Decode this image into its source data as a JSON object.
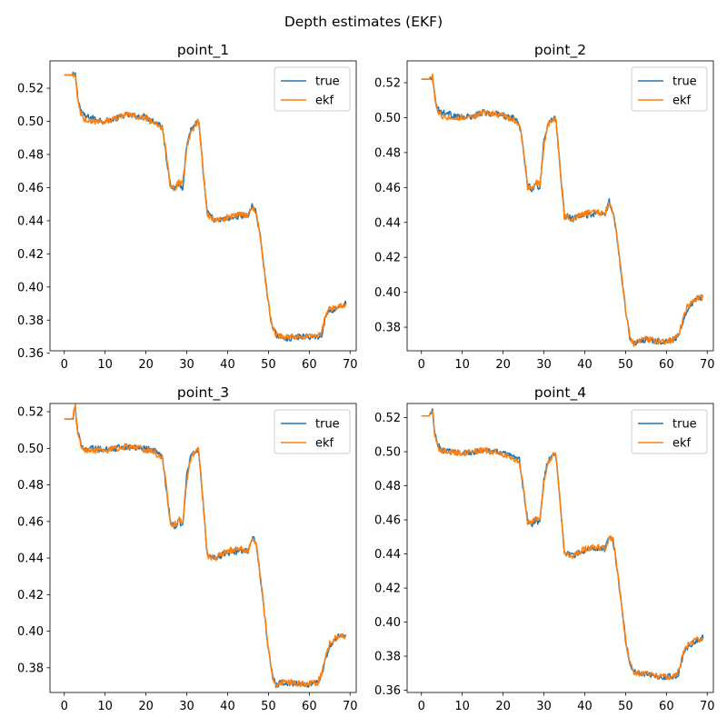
{
  "suptitle": "Depth estimates (EKF)",
  "colors": {
    "true": "#1f77b4",
    "ekf": "#ff7f0e"
  },
  "chart_data": [
    {
      "type": "line",
      "title": "point_1",
      "xlim": [
        -3.5,
        71.5
      ],
      "ylim": [
        0.3615,
        0.5365
      ],
      "xticks": [
        0,
        10,
        20,
        30,
        40,
        50,
        60,
        70
      ],
      "yticks": [
        0.36,
        0.38,
        0.4,
        0.42,
        0.44,
        0.46,
        0.48,
        0.5,
        0.52
      ],
      "ytick_labels": [
        "0.36",
        "0.38",
        "0.40",
        "0.42",
        "0.44",
        "0.46",
        "0.48",
        "0.50",
        "0.52"
      ],
      "legend": {
        "position": "top-right",
        "entries": [
          "true",
          "ekf"
        ]
      },
      "series": [
        {
          "name": "true",
          "color": "#1f77b4",
          "x": [
            0,
            2,
            2.7,
            3.3,
            4,
            5,
            7,
            10,
            13,
            15,
            18,
            20,
            21,
            22,
            23,
            24,
            25,
            26,
            27,
            28,
            29,
            30,
            31,
            32,
            32.7,
            33,
            34,
            35,
            37,
            40,
            43,
            45,
            46,
            47,
            48,
            49,
            50,
            51,
            52,
            53,
            55,
            58,
            60,
            62,
            63,
            64,
            65,
            66,
            67,
            68,
            69
          ],
          "y": [
            0.528,
            0.528,
            0.528,
            0.515,
            0.507,
            0.503,
            0.502,
            0.5,
            0.502,
            0.504,
            0.503,
            0.503,
            0.501,
            0.5,
            0.499,
            0.497,
            0.478,
            0.462,
            0.459,
            0.462,
            0.46,
            0.486,
            0.495,
            0.498,
            0.5,
            0.497,
            0.47,
            0.445,
            0.44,
            0.441,
            0.443,
            0.443,
            0.449,
            0.445,
            0.43,
            0.41,
            0.39,
            0.375,
            0.371,
            0.37,
            0.369,
            0.37,
            0.37,
            0.37,
            0.371,
            0.382,
            0.386,
            0.386,
            0.388,
            0.389,
            0.39
          ]
        },
        {
          "name": "ekf",
          "color": "#ff7f0e",
          "x": [
            0,
            2,
            2.7,
            3.3,
            4,
            5,
            7,
            10,
            13,
            15,
            18,
            20,
            21,
            22,
            23,
            24,
            25,
            26,
            27,
            28,
            29,
            30,
            31,
            32,
            32.7,
            33,
            34,
            35,
            37,
            40,
            43,
            45,
            46,
            47,
            48,
            49,
            50,
            51,
            52,
            53,
            55,
            58,
            60,
            62,
            63,
            64,
            65,
            66,
            67,
            68,
            69
          ],
          "y": [
            0.528,
            0.528,
            0.528,
            0.513,
            0.505,
            0.501,
            0.5,
            0.5,
            0.502,
            0.504,
            0.503,
            0.502,
            0.5,
            0.5,
            0.498,
            0.496,
            0.48,
            0.46,
            0.46,
            0.463,
            0.462,
            0.484,
            0.494,
            0.497,
            0.5,
            0.498,
            0.47,
            0.444,
            0.44,
            0.442,
            0.444,
            0.443,
            0.448,
            0.446,
            0.43,
            0.41,
            0.39,
            0.375,
            0.371,
            0.37,
            0.37,
            0.37,
            0.37,
            0.37,
            0.372,
            0.383,
            0.387,
            0.387,
            0.388,
            0.389,
            0.39
          ]
        }
      ]
    },
    {
      "type": "line",
      "title": "point_2",
      "xlim": [
        -3.5,
        71.5
      ],
      "ylim": [
        0.3665,
        0.5325
      ],
      "xticks": [
        0,
        10,
        20,
        30,
        40,
        50,
        60,
        70
      ],
      "yticks": [
        0.38,
        0.4,
        0.42,
        0.44,
        0.46,
        0.48,
        0.5,
        0.52
      ],
      "ytick_labels": [
        "0.38",
        "0.40",
        "0.42",
        "0.44",
        "0.46",
        "0.48",
        "0.50",
        "0.52"
      ],
      "legend": {
        "position": "top-right",
        "entries": [
          "true",
          "ekf"
        ]
      },
      "series": [
        {
          "name": "true",
          "color": "#1f77b4",
          "x": [
            0,
            2,
            2.7,
            3.3,
            4,
            5,
            7,
            10,
            13,
            15,
            18,
            20,
            21,
            22,
            23,
            24,
            25,
            26,
            27,
            28,
            29,
            30,
            31,
            32,
            32.7,
            33,
            34,
            35,
            37,
            40,
            43,
            45,
            46,
            47,
            48,
            49,
            50,
            51,
            52,
            53,
            55,
            58,
            60,
            62,
            63,
            64,
            65,
            66,
            67,
            68,
            69
          ],
          "y": [
            0.522,
            0.522,
            0.524,
            0.512,
            0.505,
            0.503,
            0.502,
            0.5,
            0.501,
            0.503,
            0.502,
            0.502,
            0.5,
            0.5,
            0.499,
            0.497,
            0.48,
            0.462,
            0.459,
            0.462,
            0.46,
            0.486,
            0.497,
            0.499,
            0.5,
            0.498,
            0.47,
            0.444,
            0.442,
            0.444,
            0.445,
            0.445,
            0.452,
            0.445,
            0.43,
            0.41,
            0.39,
            0.375,
            0.37,
            0.372,
            0.373,
            0.372,
            0.372,
            0.373,
            0.375,
            0.383,
            0.39,
            0.393,
            0.396,
            0.397,
            0.397
          ]
        },
        {
          "name": "ekf",
          "color": "#ff7f0e",
          "x": [
            0,
            2,
            2.7,
            3.3,
            4,
            5,
            7,
            10,
            13,
            15,
            18,
            20,
            21,
            22,
            23,
            24,
            25,
            26,
            27,
            28,
            29,
            30,
            31,
            32,
            32.7,
            33,
            34,
            35,
            37,
            40,
            43,
            45,
            46,
            47,
            48,
            49,
            50,
            51,
            52,
            53,
            55,
            58,
            60,
            62,
            63,
            64,
            65,
            66,
            67,
            68,
            69
          ],
          "y": [
            0.522,
            0.522,
            0.525,
            0.511,
            0.504,
            0.501,
            0.5,
            0.5,
            0.501,
            0.503,
            0.502,
            0.501,
            0.5,
            0.5,
            0.498,
            0.496,
            0.481,
            0.46,
            0.46,
            0.463,
            0.462,
            0.484,
            0.496,
            0.499,
            0.5,
            0.498,
            0.47,
            0.443,
            0.442,
            0.445,
            0.446,
            0.445,
            0.451,
            0.446,
            0.43,
            0.41,
            0.39,
            0.375,
            0.37,
            0.372,
            0.373,
            0.372,
            0.372,
            0.373,
            0.376,
            0.384,
            0.391,
            0.394,
            0.396,
            0.397,
            0.397
          ]
        }
      ]
    },
    {
      "type": "line",
      "title": "point_3",
      "xlim": [
        -3.5,
        71.5
      ],
      "ylim": [
        0.3665,
        0.5245
      ],
      "xticks": [
        0,
        10,
        20,
        30,
        40,
        50,
        60,
        70
      ],
      "yticks": [
        0.38,
        0.4,
        0.42,
        0.44,
        0.46,
        0.48,
        0.5,
        0.52
      ],
      "ytick_labels": [
        "0.38",
        "0.40",
        "0.42",
        "0.44",
        "0.46",
        "0.48",
        "0.50",
        "0.52"
      ],
      "legend": {
        "position": "top-right",
        "entries": [
          "true",
          "ekf"
        ]
      },
      "series": [
        {
          "name": "true",
          "color": "#1f77b4",
          "x": [
            0,
            2,
            2.7,
            3.3,
            4,
            5,
            7,
            10,
            13,
            15,
            18,
            20,
            21,
            22,
            23,
            24,
            25,
            26,
            27,
            28,
            29,
            30,
            31,
            32,
            32.7,
            33,
            34,
            35,
            37,
            40,
            43,
            45,
            46,
            47,
            48,
            49,
            50,
            51,
            52,
            53,
            55,
            58,
            60,
            62,
            63,
            64,
            65,
            66,
            67,
            68,
            69
          ],
          "y": [
            0.516,
            0.516,
            0.522,
            0.508,
            0.503,
            0.5,
            0.5,
            0.499,
            0.5,
            0.501,
            0.5,
            0.5,
            0.499,
            0.499,
            0.497,
            0.496,
            0.478,
            0.46,
            0.457,
            0.46,
            0.458,
            0.485,
            0.496,
            0.498,
            0.5,
            0.497,
            0.47,
            0.442,
            0.44,
            0.443,
            0.444,
            0.444,
            0.452,
            0.447,
            0.43,
            0.41,
            0.39,
            0.375,
            0.37,
            0.372,
            0.372,
            0.371,
            0.371,
            0.372,
            0.376,
            0.385,
            0.392,
            0.395,
            0.397,
            0.397,
            0.398
          ]
        },
        {
          "name": "ekf",
          "color": "#ff7f0e",
          "x": [
            0,
            2,
            2.7,
            3.3,
            4,
            5,
            7,
            10,
            13,
            15,
            18,
            20,
            21,
            22,
            23,
            24,
            25,
            26,
            27,
            28,
            29,
            30,
            31,
            32,
            32.7,
            33,
            34,
            35,
            37,
            40,
            43,
            45,
            46,
            47,
            48,
            49,
            50,
            51,
            52,
            53,
            55,
            58,
            60,
            62,
            63,
            64,
            65,
            66,
            67,
            68,
            69
          ],
          "y": [
            0.516,
            0.516,
            0.523,
            0.507,
            0.502,
            0.499,
            0.499,
            0.499,
            0.5,
            0.501,
            0.5,
            0.499,
            0.499,
            0.498,
            0.496,
            0.495,
            0.479,
            0.458,
            0.458,
            0.461,
            0.46,
            0.483,
            0.495,
            0.498,
            0.5,
            0.497,
            0.47,
            0.441,
            0.44,
            0.444,
            0.445,
            0.444,
            0.451,
            0.448,
            0.43,
            0.41,
            0.39,
            0.375,
            0.37,
            0.372,
            0.372,
            0.371,
            0.371,
            0.372,
            0.377,
            0.386,
            0.393,
            0.396,
            0.397,
            0.397,
            0.398
          ]
        }
      ]
    },
    {
      "type": "line",
      "title": "point_4",
      "xlim": [
        -3.5,
        71.5
      ],
      "ylim": [
        0.3587,
        0.5283
      ],
      "xticks": [
        0,
        10,
        20,
        30,
        40,
        50,
        60,
        70
      ],
      "yticks": [
        0.36,
        0.38,
        0.4,
        0.42,
        0.44,
        0.46,
        0.48,
        0.5,
        0.52
      ],
      "ytick_labels": [
        "0.36",
        "0.38",
        "0.40",
        "0.42",
        "0.44",
        "0.46",
        "0.48",
        "0.50",
        "0.52"
      ],
      "legend": {
        "position": "top-right",
        "entries": [
          "true",
          "ekf"
        ]
      },
      "series": [
        {
          "name": "true",
          "color": "#1f77b4",
          "x": [
            0,
            2,
            2.7,
            3.3,
            4,
            5,
            7,
            10,
            13,
            15,
            18,
            20,
            21,
            22,
            23,
            24,
            25,
            26,
            27,
            28,
            29,
            30,
            31,
            32,
            32.7,
            33,
            34,
            35,
            37,
            40,
            43,
            45,
            46,
            47,
            48,
            49,
            50,
            51,
            52,
            53,
            55,
            58,
            60,
            62,
            63,
            64,
            65,
            66,
            67,
            68,
            69
          ],
          "y": [
            0.521,
            0.521,
            0.524,
            0.51,
            0.504,
            0.501,
            0.5,
            0.499,
            0.5,
            0.501,
            0.5,
            0.499,
            0.498,
            0.497,
            0.496,
            0.495,
            0.477,
            0.46,
            0.457,
            0.46,
            0.458,
            0.484,
            0.495,
            0.497,
            0.499,
            0.497,
            0.47,
            0.441,
            0.439,
            0.442,
            0.443,
            0.443,
            0.451,
            0.447,
            0.43,
            0.41,
            0.39,
            0.376,
            0.371,
            0.37,
            0.37,
            0.368,
            0.368,
            0.368,
            0.37,
            0.38,
            0.385,
            0.387,
            0.389,
            0.39,
            0.391
          ]
        },
        {
          "name": "ekf",
          "color": "#ff7f0e",
          "x": [
            0,
            2,
            2.7,
            3.3,
            4,
            5,
            7,
            10,
            13,
            15,
            18,
            20,
            21,
            22,
            23,
            24,
            25,
            26,
            27,
            28,
            29,
            30,
            31,
            32,
            32.7,
            33,
            34,
            35,
            37,
            40,
            43,
            45,
            46,
            47,
            48,
            49,
            50,
            51,
            52,
            53,
            55,
            58,
            60,
            62,
            63,
            64,
            65,
            66,
            67,
            68,
            69
          ],
          "y": [
            0.521,
            0.521,
            0.525,
            0.509,
            0.503,
            0.5,
            0.5,
            0.499,
            0.5,
            0.501,
            0.5,
            0.498,
            0.498,
            0.496,
            0.495,
            0.494,
            0.478,
            0.458,
            0.458,
            0.461,
            0.46,
            0.482,
            0.494,
            0.497,
            0.499,
            0.497,
            0.47,
            0.44,
            0.439,
            0.443,
            0.444,
            0.443,
            0.45,
            0.448,
            0.43,
            0.41,
            0.39,
            0.376,
            0.371,
            0.37,
            0.37,
            0.368,
            0.368,
            0.368,
            0.371,
            0.381,
            0.386,
            0.388,
            0.389,
            0.39,
            0.391
          ]
        }
      ]
    }
  ]
}
